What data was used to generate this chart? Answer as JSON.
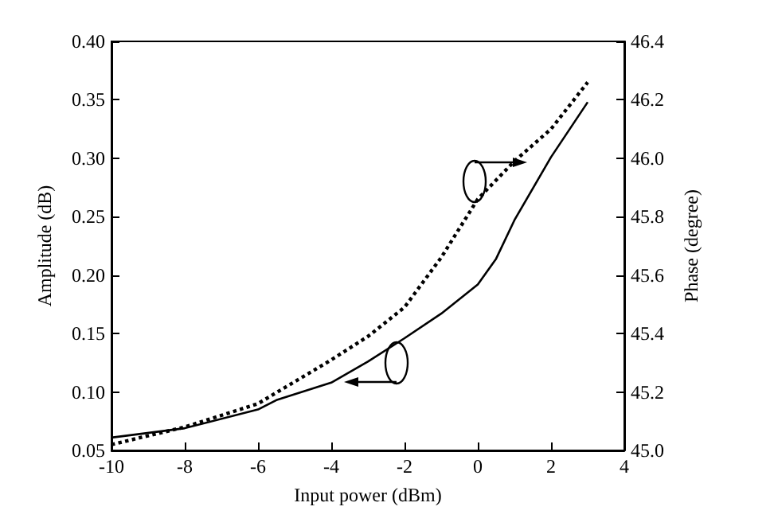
{
  "chart_data": {
    "type": "line",
    "xlabel": "Input power (dBm)",
    "ylabel": "Amplitude (dB)",
    "y2label": "Phase (degree)",
    "xlim": [
      -10,
      4
    ],
    "xticks": [
      -10,
      -8,
      -6,
      -4,
      -2,
      0,
      2,
      4
    ],
    "ylim": [
      0.05,
      0.4
    ],
    "yticks": [
      {
        "value": 0.05,
        "label": "0.05"
      },
      {
        "value": 0.1,
        "label": "0.10"
      },
      {
        "value": 0.15,
        "label": "0.15"
      },
      {
        "value": 0.2,
        "label": "0.20"
      },
      {
        "value": 0.25,
        "label": "0.25"
      },
      {
        "value": 0.3,
        "label": "0.30"
      },
      {
        "value": 0.35,
        "label": "0.35"
      },
      {
        "value": 0.4,
        "label": "0.40"
      }
    ],
    "y2lim": [
      45.0,
      46.4
    ],
    "y2ticks": [
      {
        "value": 45,
        "label": "45.0"
      },
      {
        "value": 45.2,
        "label": "45.2"
      },
      {
        "value": 45.4,
        "label": "45.4"
      },
      {
        "value": 45.6,
        "label": "45.6"
      },
      {
        "value": 45.8,
        "label": "45.8"
      },
      {
        "value": 46,
        "label": "46.0"
      },
      {
        "value": 46.2,
        "label": "46.2"
      },
      {
        "value": 46.4,
        "label": "46.4"
      }
    ],
    "series": [
      {
        "color": "#000000",
        "line_style": "solid",
        "x": [
          -10,
          -8,
          -6,
          -5.5,
          -4,
          -3,
          -2,
          -1,
          0,
          0.5,
          1,
          2,
          3
        ],
        "values": [
          0.061,
          0.069,
          0.085,
          0.093,
          0.108,
          0.126,
          0.146,
          0.167,
          0.192,
          0.214,
          0.247,
          0.301,
          0.348
        ]
      },
      {
        "color": "#000000",
        "line_style": "dotted",
        "axis": "y2",
        "x": [
          -10,
          -8,
          -6,
          -4,
          -3,
          -2,
          -1,
          0,
          1,
          2,
          3
        ],
        "values": [
          45.02,
          45.08,
          45.16,
          45.31,
          45.39,
          45.49,
          45.66,
          45.86,
          45.99,
          46.1,
          46.26
        ]
      }
    ],
    "grid": false,
    "marker": "none"
  }
}
